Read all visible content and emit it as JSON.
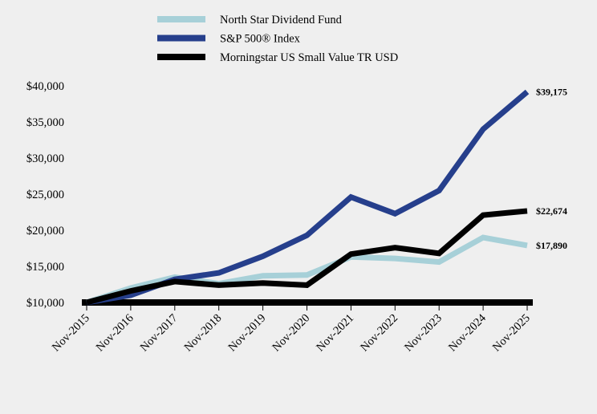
{
  "chart_data": {
    "type": "line",
    "title": "",
    "xlabel": "",
    "ylabel": "",
    "categories": [
      "Nov-2015",
      "Nov-2016",
      "Nov-2017",
      "Nov-2018",
      "Nov-2019",
      "Nov-2020",
      "Nov-2021",
      "Nov-2022",
      "Nov-2023",
      "Nov-2024",
      "Nov-2025"
    ],
    "y_ticks": [
      10000,
      15000,
      20000,
      25000,
      30000,
      35000,
      40000
    ],
    "y_tick_labels": [
      "$10,000",
      "$15,000",
      "$20,000",
      "$25,000",
      "$30,000",
      "$35,000",
      "$40,000"
    ],
    "ylim": [
      10000,
      40000
    ],
    "grid": false,
    "legend_position": "top-center",
    "series": [
      {
        "name": "North Star Dividend Fund",
        "color": "#a7d0d8",
        "values": [
          10000,
          12000,
          13500,
          12600,
          13700,
          13800,
          16300,
          16100,
          15600,
          19000,
          17890
        ],
        "end_label": "$17,890"
      },
      {
        "name": "S&P 500® Index",
        "color": "#263f8c",
        "values": [
          10000,
          11000,
          13200,
          14100,
          16400,
          19300,
          24600,
          22300,
          25500,
          34000,
          39175
        ],
        "end_label": "$39,175"
      },
      {
        "name": "Morningstar US Small Value TR USD",
        "color": "#000000",
        "values": [
          10000,
          11600,
          12900,
          12400,
          12700,
          12400,
          16700,
          17600,
          16800,
          22100,
          22674
        ],
        "end_label": "$22,674"
      }
    ]
  }
}
